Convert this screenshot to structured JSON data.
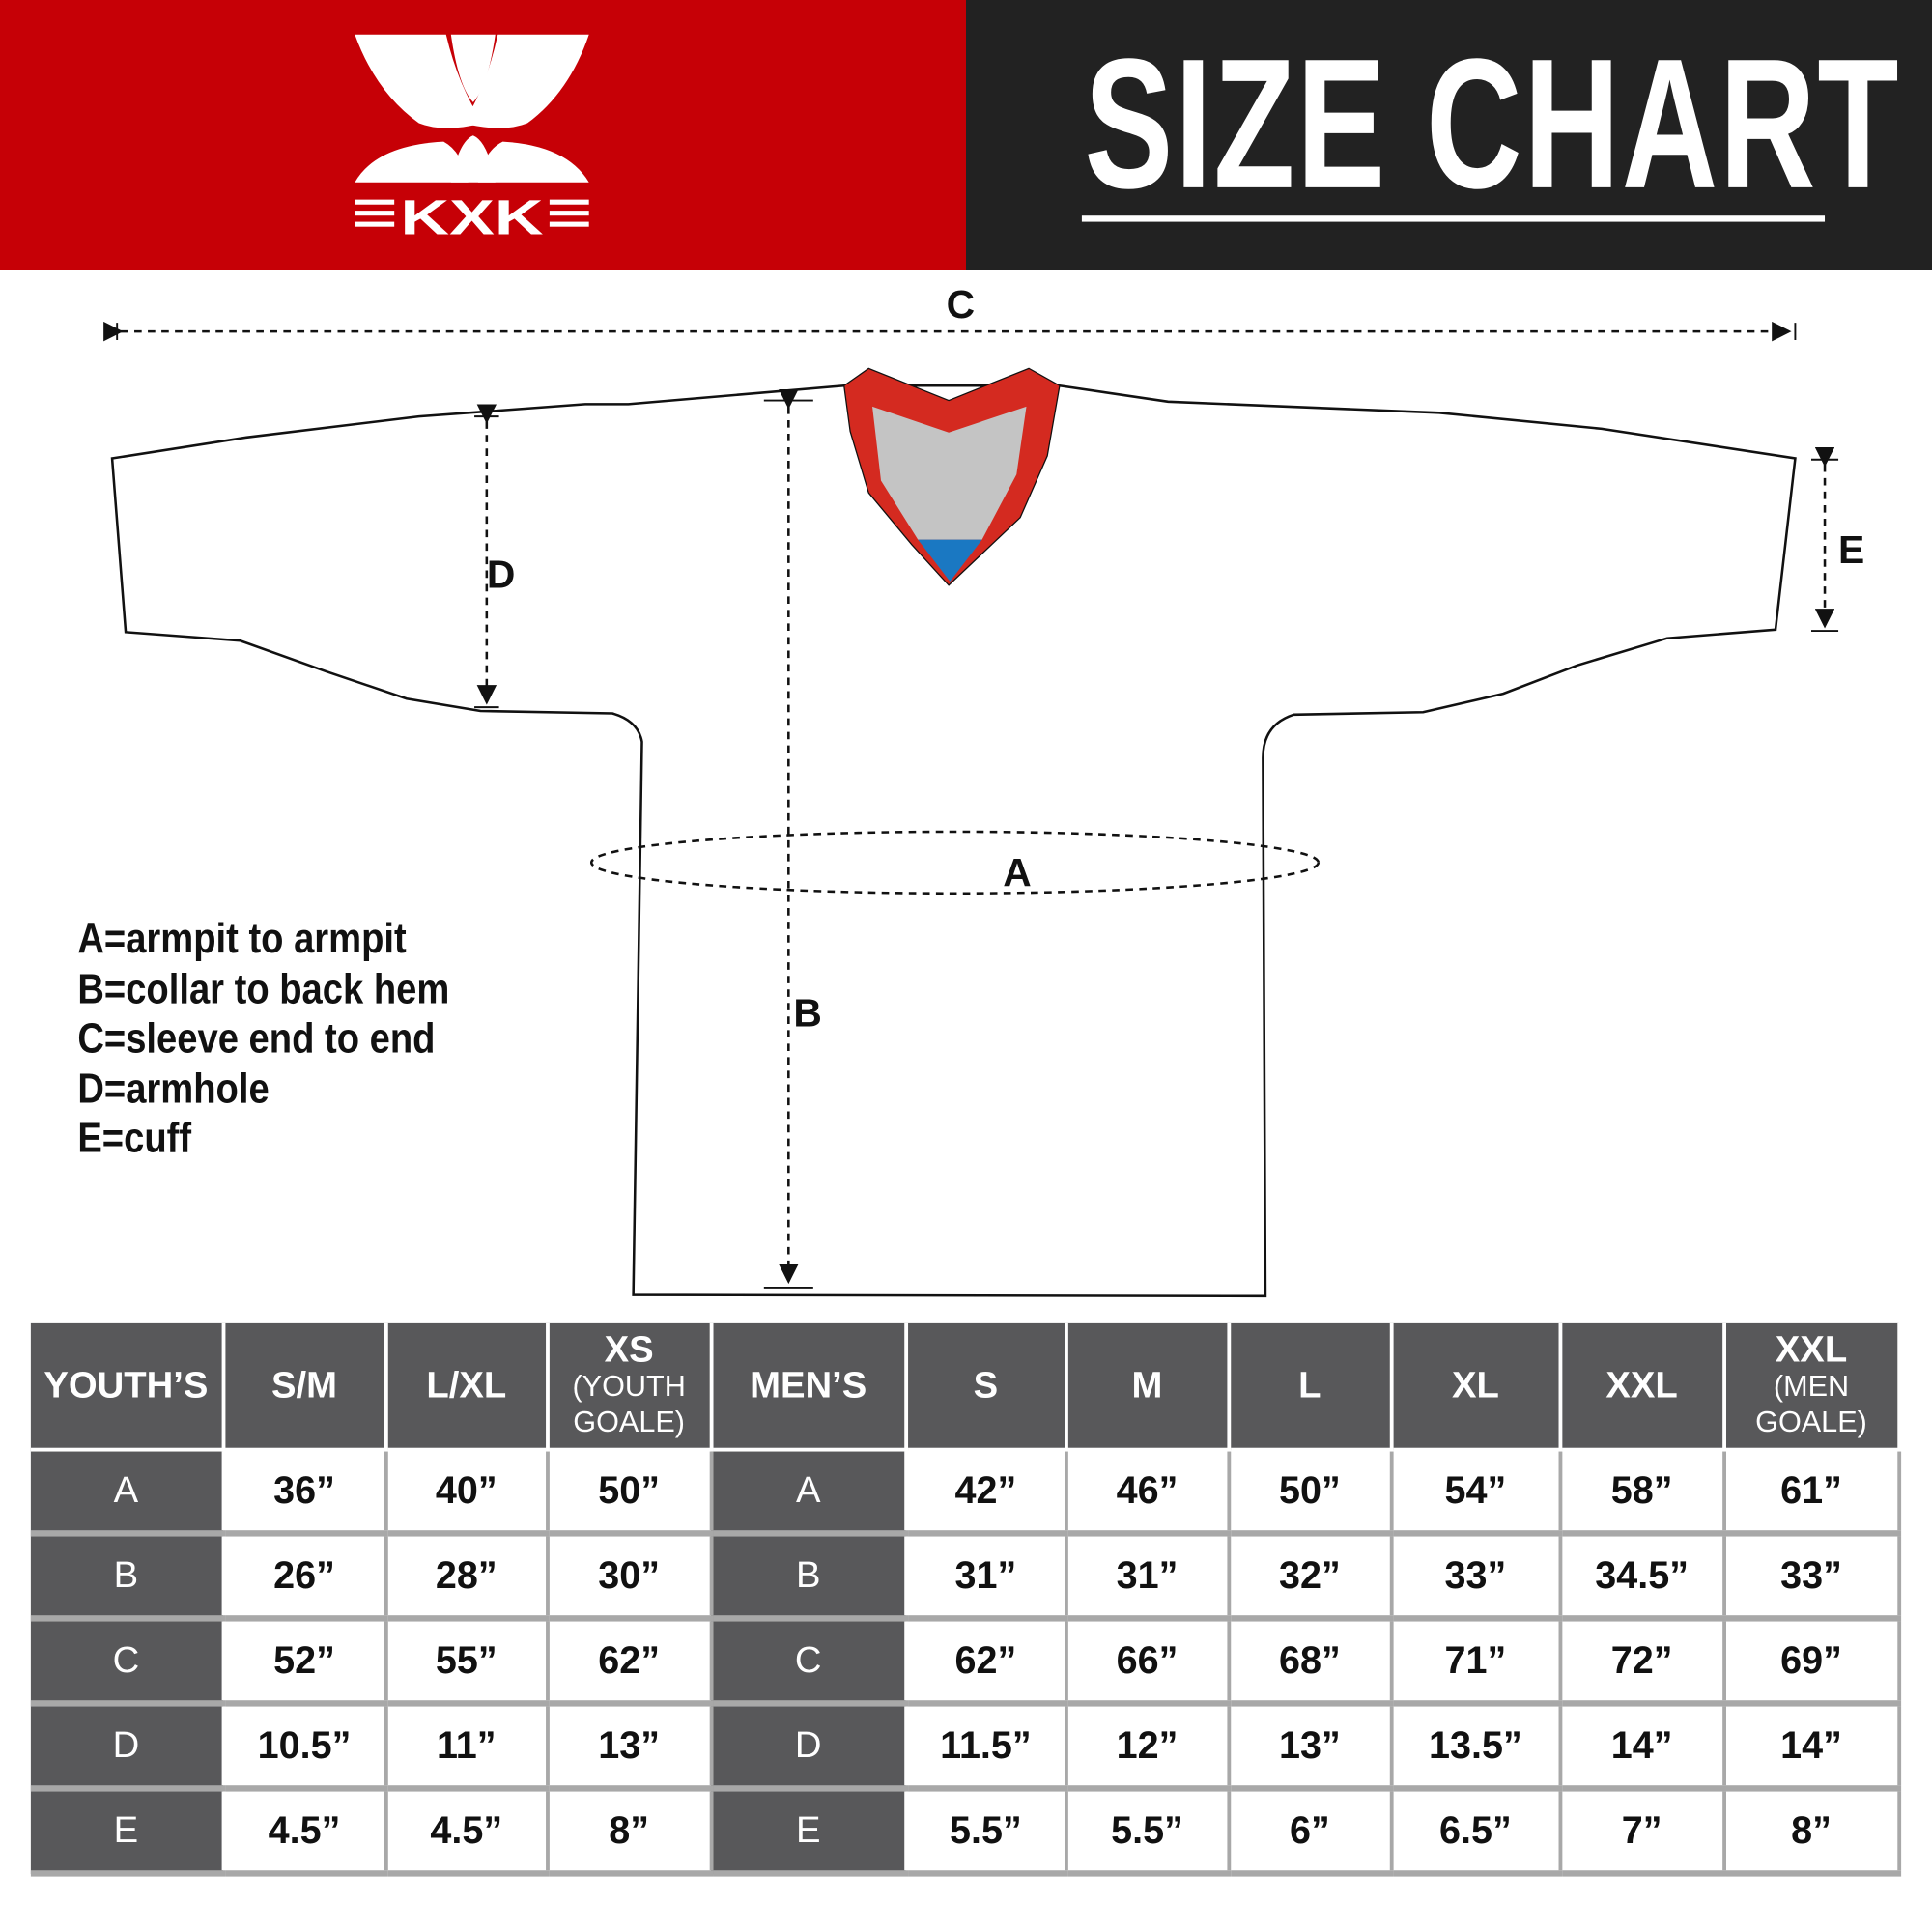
{
  "header": {
    "logo_text": "KXK",
    "title": "SIZE CHART",
    "colors": {
      "brand_red": "#c60006",
      "dark": "#222222",
      "table_header": "#58585a",
      "collar_red": "#d42a20",
      "collar_gray": "#c4c4c4",
      "collar_blue": "#1a78c2"
    }
  },
  "diagram": {
    "labels": {
      "a": "A",
      "b": "B",
      "c": "C",
      "d": "D",
      "e": "E"
    }
  },
  "legend": [
    "A=armpit to armpit",
    "B=collar to back hem",
    "C=sleeve end to end",
    "D=armhole",
    "E=cuff"
  ],
  "table": {
    "youth_header": "YOUTH’S",
    "youth_sizes": [
      {
        "main": "S/M",
        "sub": ""
      },
      {
        "main": "L/XL",
        "sub": ""
      },
      {
        "main": "XS",
        "sub": "(YOUTH GOALE)"
      }
    ],
    "men_header": "MEN’S",
    "men_sizes": [
      {
        "main": "S",
        "sub": ""
      },
      {
        "main": "M",
        "sub": ""
      },
      {
        "main": "L",
        "sub": ""
      },
      {
        "main": "XL",
        "sub": ""
      },
      {
        "main": "XXL",
        "sub": ""
      },
      {
        "main": "XXL",
        "sub": "(MEN GOALE)"
      }
    ],
    "rows": [
      {
        "label": "A",
        "youth": [
          "36”",
          "40”",
          "50”"
        ],
        "men": [
          "42”",
          "46”",
          "50”",
          "54”",
          "58”",
          "61”"
        ]
      },
      {
        "label": "B",
        "youth": [
          "26”",
          "28”",
          "30”"
        ],
        "men": [
          "31”",
          "31”",
          "32”",
          "33”",
          "34.5”",
          "33”"
        ]
      },
      {
        "label": "C",
        "youth": [
          "52”",
          "55”",
          "62”"
        ],
        "men": [
          "62”",
          "66”",
          "68”",
          "71”",
          "72”",
          "69”"
        ]
      },
      {
        "label": "D",
        "youth": [
          "10.5”",
          "11”",
          "13”"
        ],
        "men": [
          "11.5”",
          "12”",
          "13”",
          "13.5”",
          "14”",
          "14”"
        ]
      },
      {
        "label": "E",
        "youth": [
          "4.5”",
          "4.5”",
          "8”"
        ],
        "men": [
          "5.5”",
          "5.5”",
          "6”",
          "6.5”",
          "7”",
          "8”"
        ]
      }
    ]
  }
}
